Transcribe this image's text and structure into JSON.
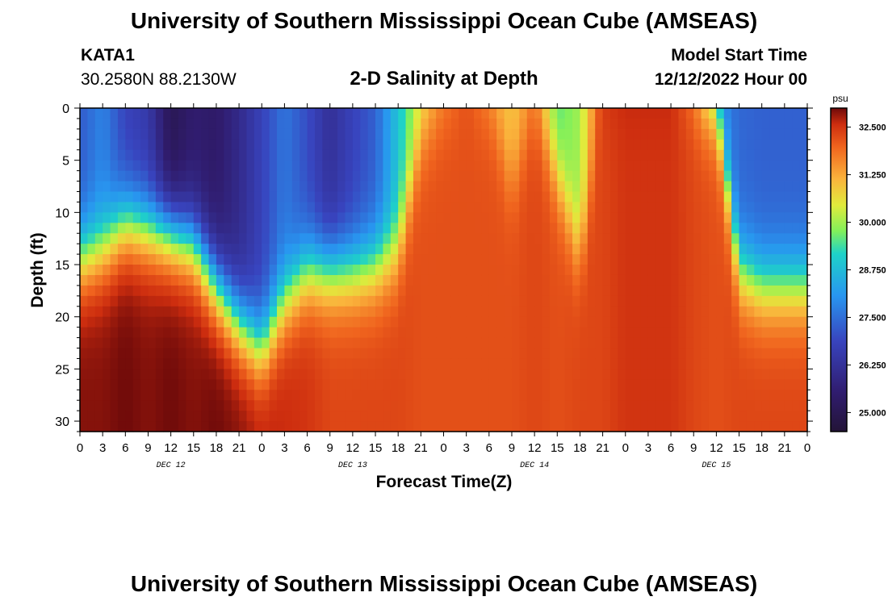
{
  "header": {
    "title": "University of Southern Mississippi Ocean Cube (AMSEAS)",
    "station": "KATA1",
    "coords": "30.2580N  88.2130W",
    "subtitle": "2-D Salinity at Depth",
    "model_label": "Model Start Time",
    "model_time": "12/12/2022 Hour 00"
  },
  "footer": {
    "title": "University of Southern Mississippi Ocean Cube (AMSEAS)"
  },
  "chart_data": {
    "type": "heatmap",
    "title": "2-D Salinity at Depth",
    "xlabel": "Forecast Time(Z)",
    "ylabel": "Depth (ft)",
    "xlim": [
      0,
      96
    ],
    "ylim": [
      0,
      31
    ],
    "x_tick_labels": [
      "0",
      "3",
      "6",
      "9",
      "12",
      "15",
      "18",
      "21",
      "0",
      "3",
      "6",
      "9",
      "12",
      "15",
      "18",
      "21",
      "0",
      "3",
      "6",
      "9",
      "12",
      "15",
      "18",
      "21",
      "0",
      "3",
      "6",
      "9",
      "12",
      "15",
      "18",
      "21",
      "0"
    ],
    "y_ticks": [
      0,
      5,
      10,
      15,
      20,
      25,
      30
    ],
    "y_tick_labels": [
      "0",
      "5",
      "10",
      "15",
      "20",
      "25",
      "30"
    ],
    "day_labels": [
      "DEC 12",
      "DEC 13",
      "DEC 14",
      "DEC 15"
    ],
    "colorbar": {
      "unit": "psu",
      "range": [
        24.5,
        33.0
      ],
      "ticks": [
        32.5,
        31.25,
        30.0,
        28.75,
        27.5,
        26.25,
        25.0
      ],
      "tick_labels": [
        "32.500",
        "31.250",
        "30.000",
        "28.750",
        "27.500",
        "26.250",
        "25.000"
      ]
    },
    "grid": {
      "times_hours": [
        0,
        3,
        6,
        9,
        12,
        15,
        18,
        21,
        24,
        27,
        30,
        33,
        36,
        39,
        42,
        45,
        48,
        51,
        54,
        57,
        60,
        63,
        66,
        69,
        72,
        75,
        78,
        81,
        84,
        87,
        90,
        93,
        96
      ],
      "halocline_depth_ft": [
        14.5,
        13.5,
        11.0,
        11.5,
        12.0,
        13.0,
        17.0,
        20.5,
        23.0,
        18.5,
        15.5,
        15.5,
        15.5,
        15.0,
        13.5,
        3.0,
        0.0,
        0.0,
        0.0,
        7.5,
        0.0,
        6.5,
        14.0,
        0.0,
        0.0,
        0.0,
        0.0,
        0.0,
        0.0,
        15.5,
        17.0,
        17.0,
        17.0
      ],
      "surface_salinity_psu": [
        27.2,
        27.8,
        26.8,
        26.5,
        25.0,
        25.5,
        25.4,
        26.0,
        26.8,
        27.6,
        27.0,
        26.2,
        26.8,
        27.3,
        28.9,
        30.4,
        31.4,
        32.2,
        31.3,
        30.9,
        31.5,
        29.5,
        30.0,
        32.5,
        32.7,
        32.7,
        32.7,
        31.5,
        28.0,
        27.4,
        27.3,
        27.3,
        27.3
      ],
      "bottom_salinity_psu": [
        32.9,
        32.9,
        33.0,
        32.9,
        33.0,
        32.9,
        33.0,
        32.9,
        32.7,
        32.6,
        32.5,
        32.3,
        32.3,
        32.3,
        32.3,
        32.2,
        32.2,
        32.2,
        32.2,
        32.2,
        32.3,
        32.2,
        32.3,
        32.3,
        32.5,
        32.5,
        32.5,
        32.3,
        32.2,
        32.3,
        32.3,
        32.3,
        32.3
      ]
    }
  }
}
